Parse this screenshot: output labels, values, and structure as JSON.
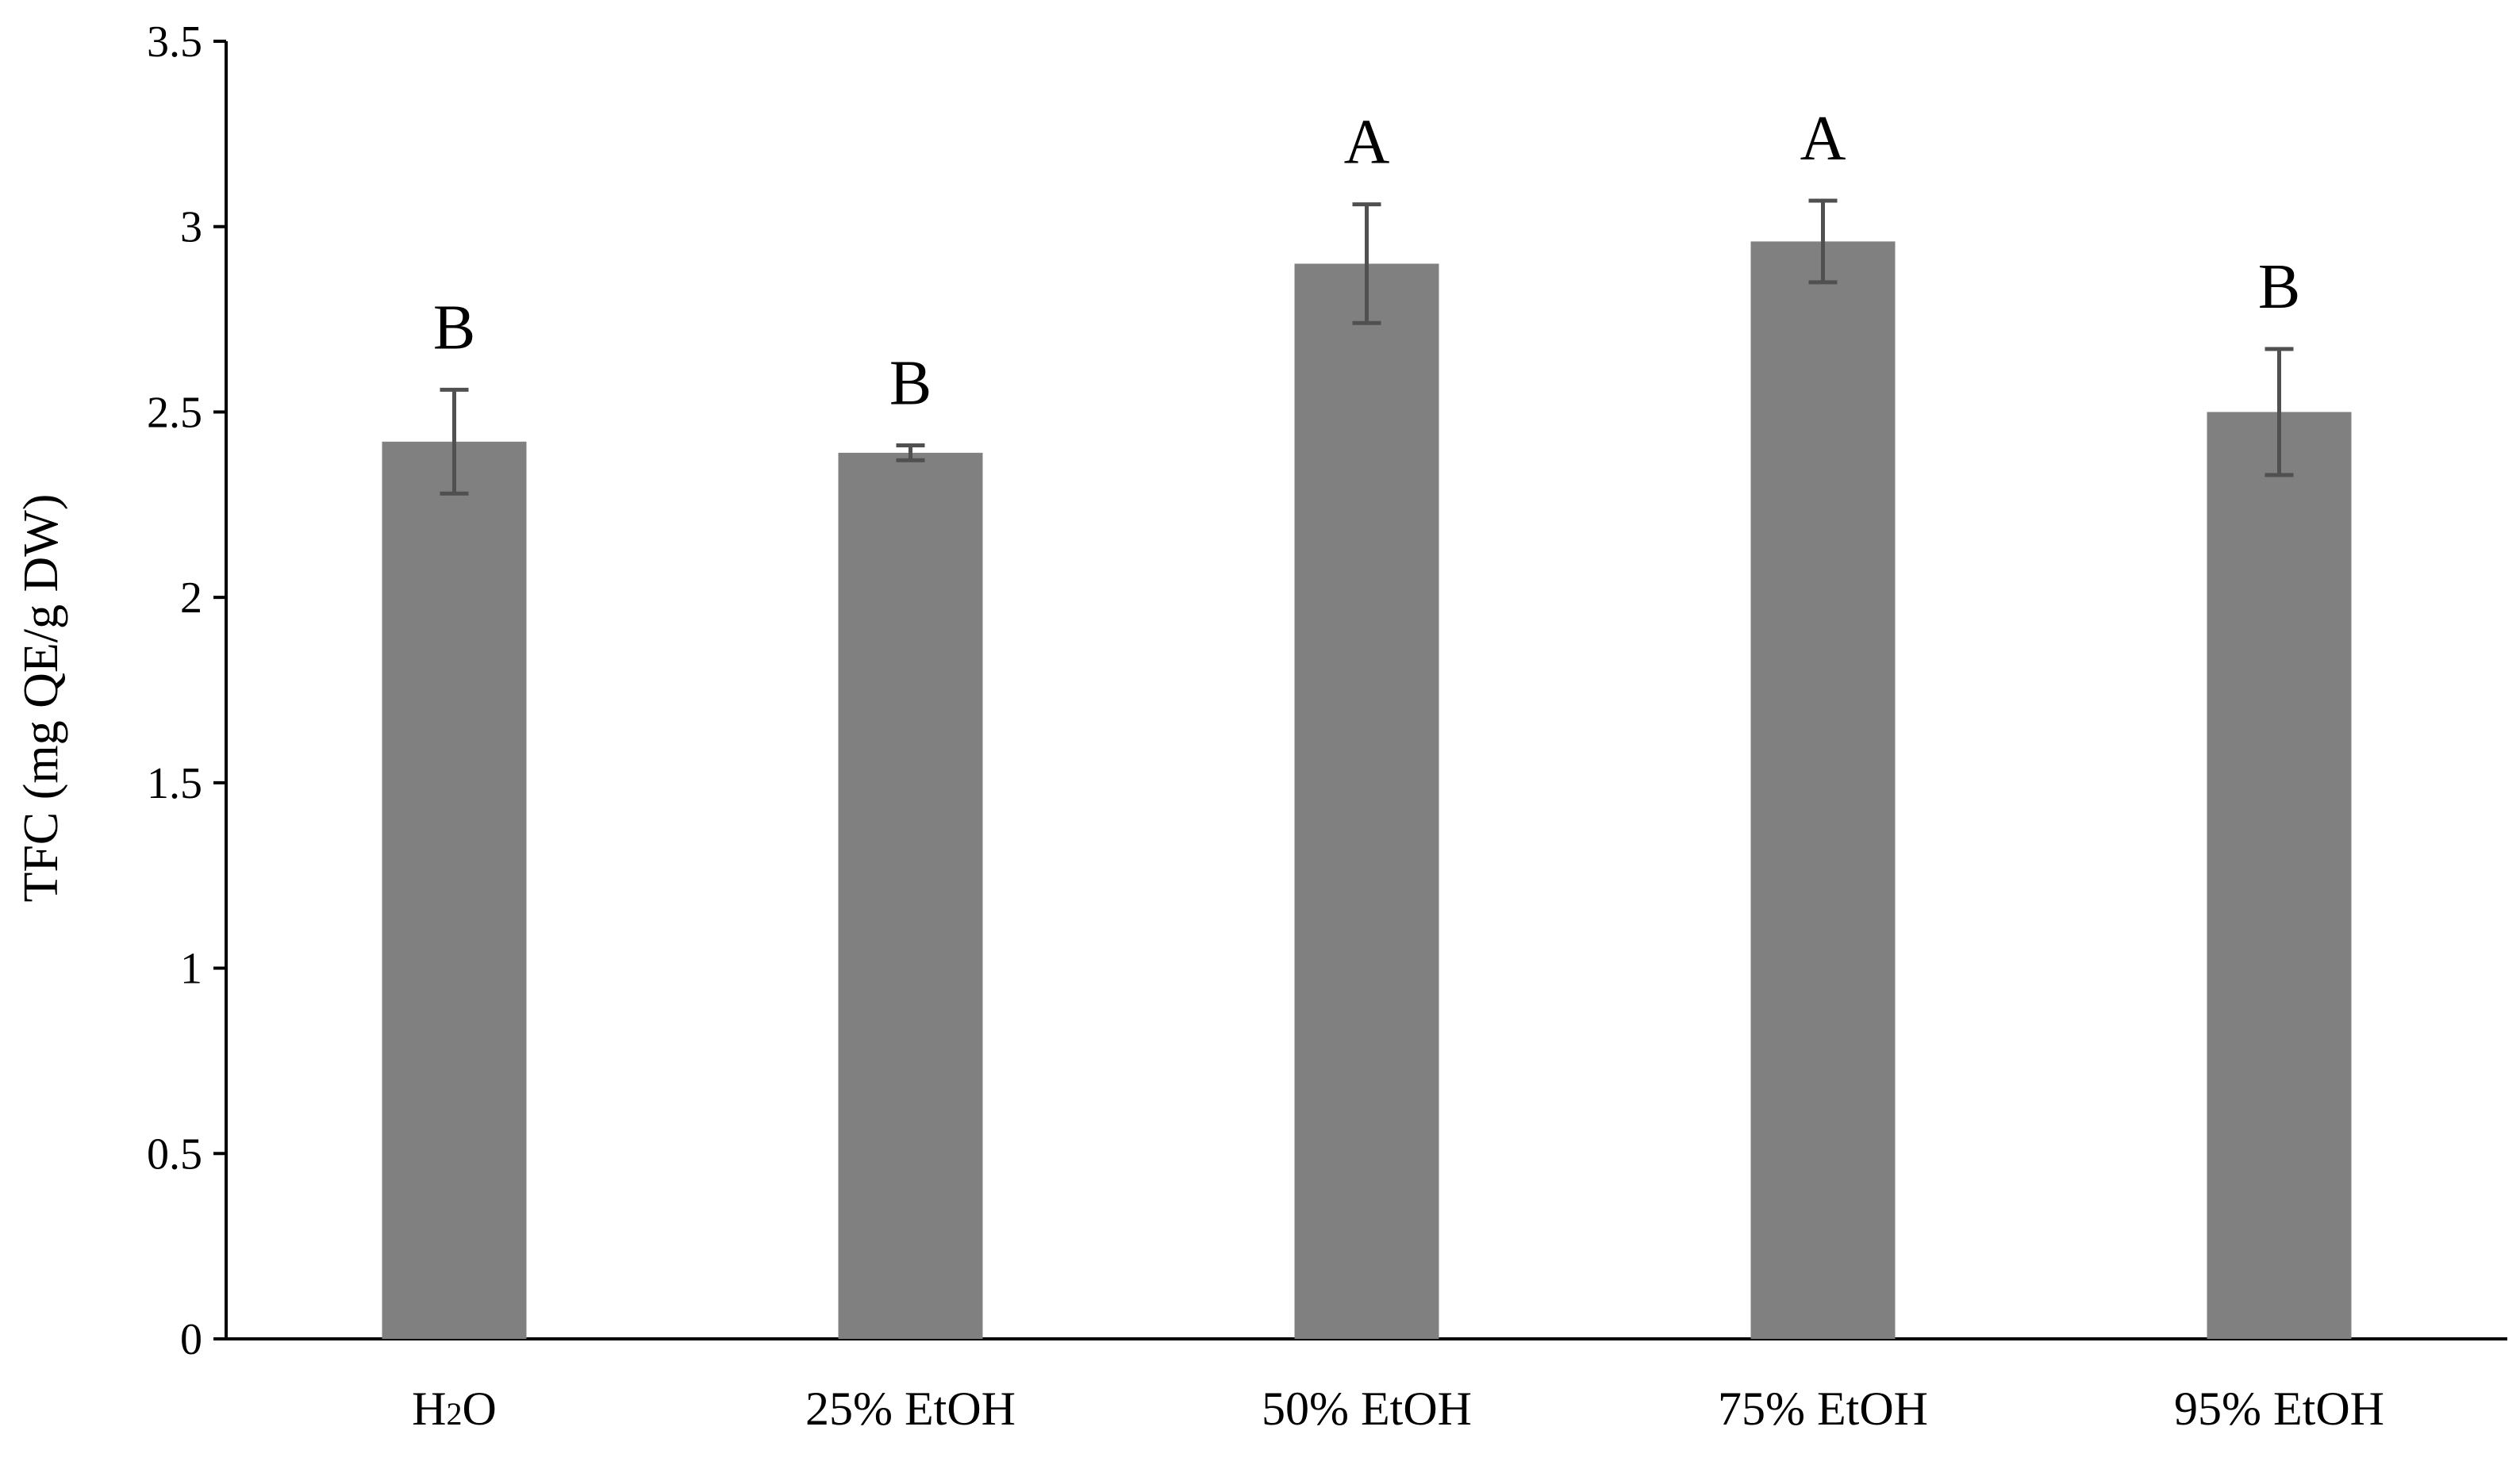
{
  "chart_data": {
    "type": "bar",
    "title": "",
    "xlabel": "",
    "ylabel": "TFC (mg QE/g DW)",
    "ylim": [
      0,
      3.5
    ],
    "yticks": [
      0,
      0.5,
      1,
      1.5,
      2,
      2.5,
      3,
      3.5
    ],
    "ytick_labels": [
      "0",
      "0.5",
      "1",
      "1.5",
      "2",
      "2.5",
      "3",
      "3.5"
    ],
    "grid": false,
    "legend": "none",
    "categories": [
      {
        "label": "H",
        "sub": "2",
        "suffix": "O"
      },
      {
        "label": "25% EtOH",
        "sub": "",
        "suffix": ""
      },
      {
        "label": "50% EtOH",
        "sub": "",
        "suffix": ""
      },
      {
        "label": "75% EtOH",
        "sub": "",
        "suffix": ""
      },
      {
        "label": "95% EtOH",
        "sub": "",
        "suffix": ""
      }
    ],
    "values": [
      2.42,
      2.39,
      2.9,
      2.96,
      2.5
    ],
    "error_minus": [
      0.14,
      0.02,
      0.16,
      0.11,
      0.17
    ],
    "error_plus": [
      0.14,
      0.02,
      0.16,
      0.11,
      0.17
    ],
    "significance_labels": [
      "B",
      "B",
      "A",
      "A",
      "B"
    ],
    "colors": {
      "bar": "#808080",
      "error_bar": "#505050",
      "axis": "#000000"
    }
  }
}
